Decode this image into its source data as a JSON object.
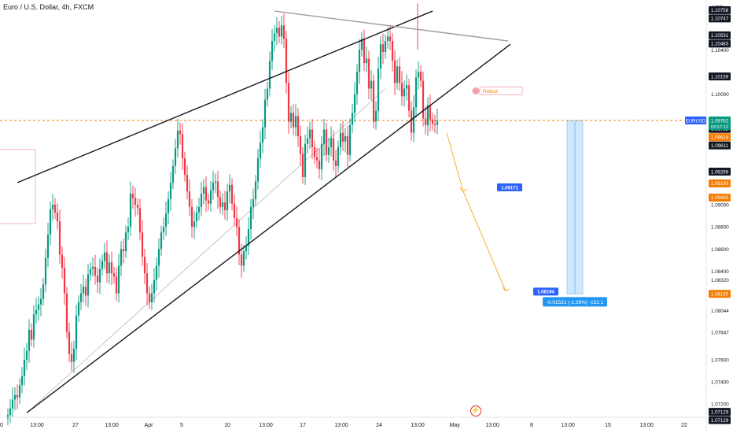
{
  "header": {
    "symbol": "Euro / U.S. Dollar",
    "interval": "4h",
    "exchange": "FXCM"
  },
  "price_axis": {
    "currency": "USD",
    "ticks": [
      "1.10400",
      "1.10000",
      "1.09000",
      "1.08800",
      "1.08600",
      "1.08400",
      "1.08320",
      "1.08212",
      "1.08044",
      "1.07847",
      "1.07600",
      "1.07400",
      "1.07200"
    ],
    "badges": [
      {
        "value": "1.10758",
        "color": "#131722"
      },
      {
        "value": "1.10747",
        "color": "#131722"
      },
      {
        "value": "1.10531",
        "color": "#131722"
      },
      {
        "value": "1.10483",
        "color": "#131722"
      },
      {
        "value": "1.10159",
        "color": "#131722"
      },
      {
        "value": "1.09760",
        "color": "#f57c00"
      },
      {
        "value": "1.09712",
        "color": "#131722"
      },
      {
        "value": "1.09619",
        "color": "#f57c00"
      },
      {
        "value": "1.09611",
        "color": "#131722"
      },
      {
        "value": "1.09299",
        "color": "#131722"
      },
      {
        "value": "1.09193",
        "color": "#f57c00"
      },
      {
        "value": "1.09065",
        "color": "#f57c00"
      },
      {
        "value": "1.08195",
        "color": "#f57c00"
      },
      {
        "value": "1.07129",
        "color": "#131722"
      },
      {
        "value": "1.07129",
        "color": "#131722"
      }
    ],
    "symbol_badge": {
      "name": "EURUSD",
      "price": "1.09762",
      "countdown": "03:57:12",
      "color": "#2962ff"
    }
  },
  "time_axis": {
    "ticks": [
      "0",
      "13:00",
      "27",
      "13:00",
      "Apr",
      "5",
      "10",
      "13:00",
      "17",
      "13:00",
      "24",
      "13:00",
      "May",
      "13:00",
      "8",
      "13:00",
      "15",
      "13:00",
      "22"
    ]
  },
  "annotations": {
    "retest_label": "Retest",
    "target_1": "1.09171",
    "target_2": "1.08194",
    "measure_label": "-0.01521 (-1.39%) -152.1"
  },
  "colors": {
    "up": "#089981",
    "down": "#f23645",
    "trendline": "#131722",
    "resistance_line": "#9e9e9e",
    "projection": "#f5a623",
    "current_price_line": "#f57c00",
    "measure_box": "#bbdefb",
    "badge_blue": "#2962ff"
  },
  "icons": {
    "watermark": "lightning-logo-icon"
  },
  "chart_data": {
    "type": "candlestick",
    "symbol": "EURUSD",
    "timeframe": "4h",
    "ylim": [
      1.0708,
      1.1085
    ],
    "current_price": 1.09762,
    "closes": [
      1.071,
      1.0716,
      1.0724,
      1.0728,
      1.0726,
      1.0737,
      1.0745,
      1.076,
      1.0768,
      1.0787,
      1.0778,
      1.0801,
      1.0805,
      1.081,
      1.0815,
      1.0828,
      1.0852,
      1.0873,
      1.0896,
      1.09,
      1.0893,
      1.0885,
      1.0855,
      1.0843,
      1.082,
      1.0785,
      1.0765,
      1.0758,
      1.077,
      1.08,
      1.0812,
      1.082,
      1.0826,
      1.0818,
      1.0837,
      1.0842,
      1.0844,
      1.0836,
      1.083,
      1.0842,
      1.0849,
      1.0857,
      1.0838,
      1.0848,
      1.0838,
      1.0835,
      1.082,
      1.0845,
      1.086,
      1.0858,
      1.0875,
      1.088,
      1.091,
      1.0906,
      1.09,
      1.0897,
      1.0875,
      1.0853,
      1.0838,
      1.082,
      1.0812,
      1.082,
      1.0832,
      1.0845,
      1.086,
      1.0875,
      1.088,
      1.0892,
      1.0905,
      1.092,
      1.0935,
      1.0951,
      1.0967,
      1.0964,
      1.0942,
      1.0927,
      1.0912,
      1.0898,
      1.088,
      1.0885,
      1.0893,
      1.0898,
      1.091,
      1.0916,
      1.0904,
      1.0901,
      1.0913,
      1.092,
      1.0921,
      1.0907,
      1.0898,
      1.0902,
      1.0895,
      1.0912,
      1.0918,
      1.0901,
      1.0888,
      1.088,
      1.0855,
      1.0845,
      1.0858,
      1.0863,
      1.0878,
      1.0898,
      1.0905,
      1.0921,
      1.0942,
      1.0956,
      1.097,
      1.0995,
      1.1005,
      1.103,
      1.1048,
      1.1055,
      1.106,
      1.1052,
      1.1062,
      1.105,
      1.101,
      1.0975,
      1.0983,
      1.097,
      1.098,
      1.0962,
      1.0946,
      1.0925,
      1.0955,
      1.096,
      1.0968,
      1.0952,
      1.0943,
      1.094,
      1.0932,
      1.0955,
      1.0968,
      1.0945,
      1.0952,
      1.096,
      1.094,
      1.0935,
      1.0952,
      1.0965,
      1.0957,
      1.0962,
      1.0945,
      1.0972,
      1.0983,
      1.1,
      1.102,
      1.104,
      1.105,
      1.1028,
      1.1032,
      1.1005,
      1.1012,
      1.0975,
      1.0985,
      1.1023,
      1.1045,
      1.1038,
      1.1048,
      1.1052,
      1.1048,
      1.103,
      1.101,
      1.1025,
      1.101,
      1.0998,
      1.1005,
      1.1008,
      1.0985,
      1.0965,
      1.0988,
      1.1015,
      1.102,
      1.1012,
      1.0978,
      1.0972,
      1.099,
      1.0977,
      1.0973,
      1.0972,
      1.0976
    ],
    "lines": [
      {
        "name": "upper-trendline",
        "from": [
          4,
          1.092
        ],
        "to": [
          180,
          1.1075
        ]
      },
      {
        "name": "lower-trendline",
        "from": [
          8,
          1.0712
        ],
        "to": [
          213,
          1.1045
        ]
      },
      {
        "name": "resistance-line",
        "from": [
          113,
          1.1075
        ],
        "to": [
          212,
          1.1048
        ]
      }
    ],
    "projection_points": [
      [
        186,
        1.0965
      ],
      [
        193,
        1.0912
      ],
      [
        211,
        1.0822
      ]
    ],
    "targets": [
      1.09171,
      1.08194
    ],
    "retest_level": 1.1,
    "measure": {
      "change": -0.01521,
      "percent": -1.39,
      "pips": -152.1
    }
  }
}
